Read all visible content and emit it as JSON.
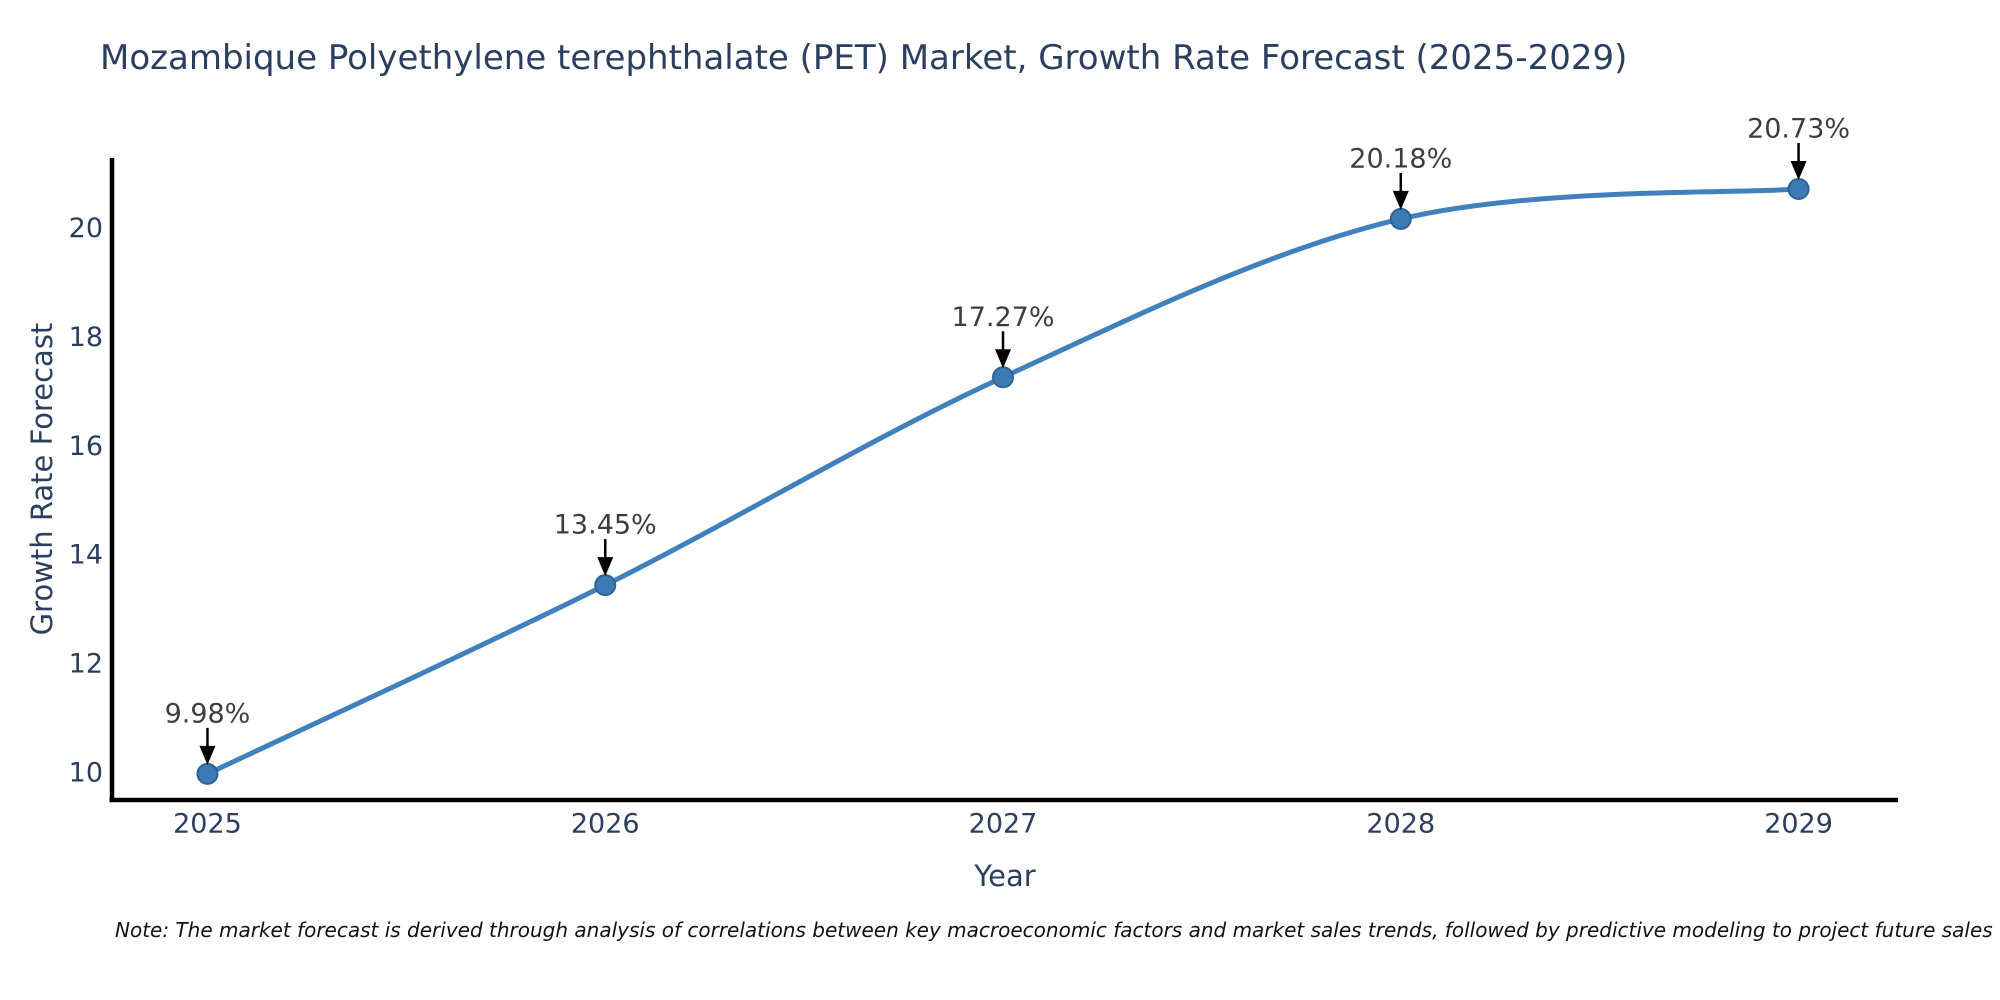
{
  "title": {
    "text": "Mozambique Polyethylene terephthalate (PET) Market, Growth Rate Forecast (2025-2029)",
    "color": "#2a3f5f"
  },
  "note": {
    "text": "Note: The market forecast is derived through analysis of correlations between key macroeconomic factors and market sales trends, followed by predictive modeling to project future sales"
  },
  "chart_data": {
    "type": "line",
    "title": "Mozambique Polyethylene terephthalate (PET) Market, Growth Rate Forecast (2025-2029)",
    "x": [
      2025,
      2026,
      2027,
      2028,
      2029
    ],
    "categories": [
      "2025",
      "2026",
      "2027",
      "2028",
      "2029"
    ],
    "series": [
      {
        "name": "Growth Rate Forecast",
        "values": [
          9.98,
          13.45,
          17.27,
          20.18,
          20.73
        ]
      }
    ],
    "point_labels": [
      "9.98%",
      "13.45%",
      "17.27%",
      "20.18%",
      "20.73%"
    ],
    "xlabel": "Year",
    "ylabel": "Growth Rate Forecast",
    "yticks": [
      10,
      12,
      14,
      16,
      18,
      20
    ],
    "xticks": [
      "2025",
      "2026",
      "2027",
      "2028",
      "2029"
    ],
    "xlim": [
      2024.76,
      2029.25
    ],
    "ylim": [
      9.5,
      21.3
    ],
    "grid": false,
    "legend_position": "none",
    "line_shape": "spline",
    "colors": {
      "line": "#4080bd",
      "marker": "#3d7ab4",
      "marker_edge": "#2d6296",
      "axis": "#000000",
      "tick_label": "#2a3f5f",
      "axis_title": "#2a3f5f",
      "annotation_text": "#3d3d3d",
      "annotation_arrow": "#000000",
      "title": "#2a3f5f",
      "background": "#ffffff"
    }
  }
}
